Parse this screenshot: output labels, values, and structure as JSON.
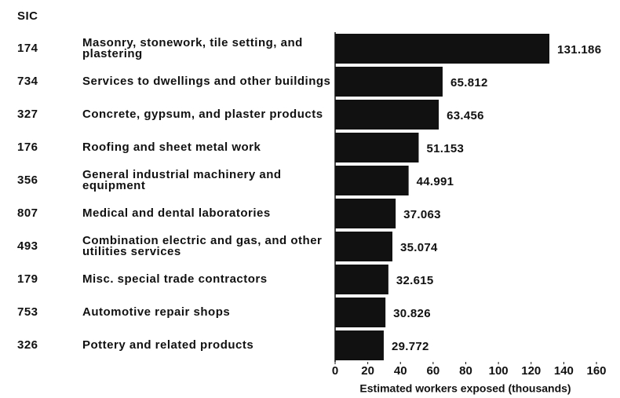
{
  "chart_data": {
    "type": "bar",
    "orientation": "horizontal",
    "code_header": "SIC",
    "codes": [
      "174",
      "734",
      "327",
      "176",
      "356",
      "807",
      "493",
      "179",
      "753",
      "326"
    ],
    "categories": [
      "Masonry, stonework, tile setting, and plastering",
      "Services to dwellings and other buildings",
      "Concrete, gypsum, and plaster products",
      "Roofing and sheet metal work",
      "General industrial machinery and equipment",
      "Medical and dental laboratories",
      "Combination electric and gas, and other utilities services",
      "Misc. special trade contractors",
      "Automotive repair shops",
      "Pottery and related products"
    ],
    "values": [
      131.186,
      65.812,
      63.456,
      51.153,
      44.991,
      37.063,
      35.074,
      32.615,
      30.826,
      29.772
    ],
    "color": "#111111",
    "x_label": "Estimated workers exposed (thousands)",
    "xlim": [
      0,
      160
    ],
    "xticks": [
      0,
      20,
      40,
      60,
      80,
      100,
      120,
      140,
      160
    ]
  }
}
